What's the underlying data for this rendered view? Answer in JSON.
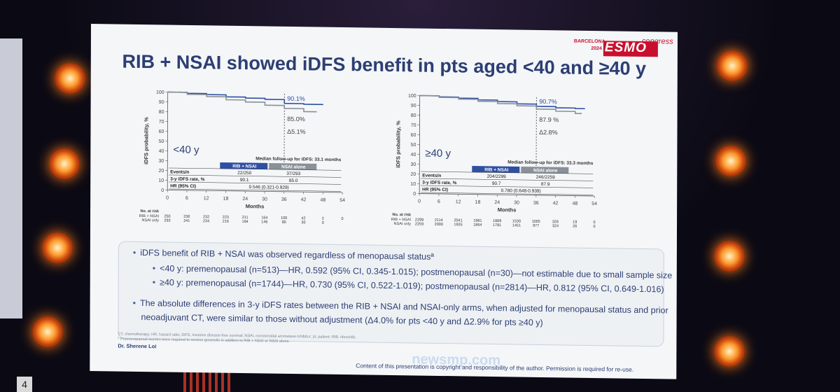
{
  "slide": {
    "title": "RIB + NSAI showed iDFS benefit in pts aged <40 and ≥40 y",
    "logo": {
      "city": "BARCELONA",
      "year": "2024",
      "mark": "ESMO",
      "suffix": "congress"
    },
    "speaker": "Dr. Sherene Loi",
    "copyright": "Content of this presentation is copyright and responsibility of the author. Permission is required for re-use.",
    "watermark": "newsmp.com",
    "footnotes": [
      "CT, chemotherapy; HR, hazard ratio; iDFS, invasive disease-free survival; NSAI, nonsteroidal aromatase inhibitor; pt, patient; RIB, ribociclib.",
      "ª Premenopausal women were required to receive goserelin in addition to RIB + NSAI or NSAI alone."
    ],
    "bullets": [
      {
        "level": 1,
        "text": "iDFS benefit of RIB + NSAI was observed regardless of menopausal statusª"
      },
      {
        "level": 2,
        "text": "<40 y: premenopausal (n=513)—HR, 0.592 (95% CI, 0.345-1.015); postmenopausal (n=30)—not estimable due to small sample size"
      },
      {
        "level": 2,
        "text": "≥40 y: premenopausal (n=1744)—HR, 0.730 (95% CI, 0.522-1.019); postmenopausal (n=2814)—HR, 0.812 (95% CI, 0.649-1.016)"
      },
      {
        "level": 1,
        "text": "The absolute differences in 3-y iDFS rates between the RIB + NSAI and NSAI-only arms, when adjusted for menopausal status and prior"
      },
      {
        "level": 0,
        "text": "neoadjuvant CT, were similar to those without adjustment (Δ4.0% for pts <40 y and Δ2.9% for pts ≥40 y)"
      }
    ]
  },
  "colors": {
    "rib": "#2f4fa3",
    "nsai": "#8a9099",
    "title": "#2c3e73",
    "header_rib": "#2f4fa3",
    "header_nsai": "#8a9099"
  },
  "chart_data": [
    {
      "type": "line",
      "group_label": "<40 y",
      "ylabel": "iDFS probability, %",
      "xlabel": "Months",
      "xlim": [
        0,
        54
      ],
      "ylim": [
        0,
        100
      ],
      "xticks": [
        0,
        6,
        12,
        18,
        24,
        30,
        36,
        42,
        48,
        54
      ],
      "yticks": [
        0,
        10,
        20,
        30,
        40,
        50,
        60,
        70,
        80,
        90,
        100
      ],
      "grid": false,
      "dashed_at_x": 36,
      "annotations": [
        "90.1%",
        "85.0%",
        "Δ5.1%"
      ],
      "series": [
        {
          "x": [
            0,
            6,
            12,
            18,
            24,
            30,
            36,
            42,
            48
          ],
          "y": [
            100,
            99,
            98,
            96,
            95,
            94,
            90.1,
            89.5,
            89.5
          ]
        },
        {
          "x": [
            0,
            6,
            12,
            18,
            24,
            30,
            36,
            42,
            46
          ],
          "y": [
            100,
            98,
            96,
            93,
            91,
            88,
            85.0,
            82,
            82
          ]
        }
      ],
      "followup": "Median follow-up for iDFS: 33.1 months",
      "table": {
        "headers": [
          "RIB + NSAI",
          "NSAI alone"
        ],
        "rows": [
          {
            "label": "Events/n",
            "values": [
              "22/250",
              "37/293"
            ]
          },
          {
            "label": "3-y iDFS rate, %",
            "values": [
              "90.1",
              "85.0"
            ]
          },
          {
            "label": "HR (95% CI)",
            "values": [
              "0.546 (0.321-0.929)"
            ]
          }
        ]
      },
      "risk_title": "No. at risk",
      "risk_labels": [
        "RIB + NSAI",
        "NSAI only"
      ],
      "risk": [
        [
          "250",
          "236",
          "232",
          "223",
          "211",
          "164",
          "106",
          "42",
          "2",
          "0"
        ],
        [
          "293",
          "241",
          "234",
          "216",
          "194",
          "146",
          "90",
          "30",
          "0",
          ""
        ]
      ]
    },
    {
      "type": "line",
      "group_label": "≥40 y",
      "ylabel": "iDFS probability, %",
      "xlabel": "Months",
      "xlim": [
        0,
        54
      ],
      "ylim": [
        0,
        100
      ],
      "xticks": [
        0,
        6,
        12,
        18,
        24,
        30,
        36,
        42,
        48,
        54
      ],
      "yticks": [
        0,
        10,
        20,
        30,
        40,
        50,
        60,
        70,
        80,
        90,
        100
      ],
      "grid": false,
      "dashed_at_x": 36,
      "annotations": [
        "90.7%",
        "87.9 %",
        "Δ2.8%"
      ],
      "series": [
        {
          "x": [
            0,
            6,
            12,
            18,
            24,
            30,
            36,
            42,
            48,
            51
          ],
          "y": [
            100,
            99,
            98,
            96.5,
            95,
            93,
            90.7,
            89.5,
            89,
            89
          ]
        },
        {
          "x": [
            0,
            6,
            12,
            18,
            24,
            30,
            36,
            42,
            48,
            50
          ],
          "y": [
            100,
            98.5,
            97,
            95,
            93,
            91,
            87.9,
            86,
            84,
            84
          ]
        }
      ],
      "followup": "Median follow-up for iDFS: 33.3 months",
      "table": {
        "headers": [
          "RIB + NSAI",
          "NSAI alone"
        ],
        "rows": [
          {
            "label": "Events/n",
            "values": [
              "204/2299",
              "246/2259"
            ]
          },
          {
            "label": "3-y iDFS rate, %",
            "values": [
              "90.7",
              "87.9"
            ]
          },
          {
            "label": "HR (95% CI)",
            "values": [
              "0.780 (0.648-0.939)"
            ]
          }
        ]
      },
      "risk_title": "No. at risk",
      "risk_labels": [
        "RIB + NSAI",
        "NSAI only"
      ],
      "risk": [
        [
          "2299",
          "2114",
          "2041",
          "1981",
          "1889",
          "1530",
          "1005",
          "326",
          "19",
          "0"
        ],
        [
          "2259",
          "2000",
          "1935",
          "1864",
          "1781",
          "1451",
          "977",
          "324",
          "26",
          "0"
        ]
      ]
    }
  ]
}
